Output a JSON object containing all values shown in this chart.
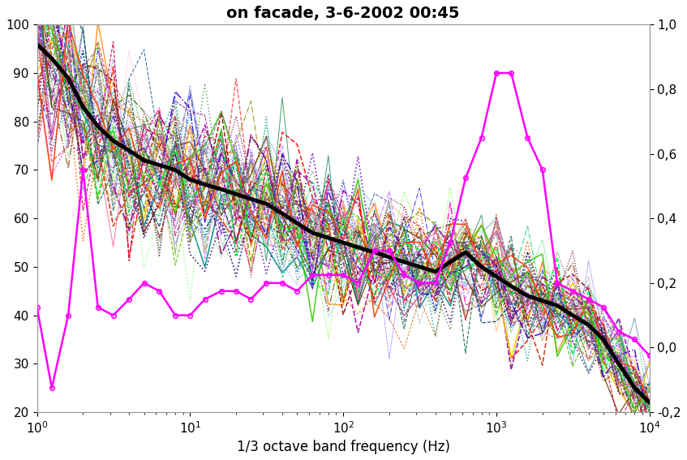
{
  "title": "on facade, 3-6-2002 00:45",
  "xlabel": "1/3 octave band frequency (Hz)",
  "xlim": [
    1,
    10000
  ],
  "ylim_left": [
    20,
    100
  ],
  "ylim_right": [
    -0.2,
    1.0
  ],
  "freq_bands": [
    1.0,
    1.25,
    1.6,
    2.0,
    2.5,
    3.15,
    4.0,
    5.0,
    6.3,
    8.0,
    10.0,
    12.5,
    16.0,
    20.0,
    25.0,
    31.5,
    40.0,
    50.0,
    63.0,
    80.0,
    100.0,
    125.0,
    160.0,
    200.0,
    250.0,
    315.0,
    400.0,
    500.0,
    630.0,
    800.0,
    1000.0,
    1250.0,
    1600.0,
    2000.0,
    2500.0,
    3150.0,
    4000.0,
    5000.0,
    6300.0,
    8000.0,
    10000.0
  ],
  "mean_spectrum": [
    96,
    93,
    89,
    83,
    79,
    76,
    74,
    72,
    71,
    70,
    68,
    67,
    66,
    65,
    64,
    63,
    61,
    59,
    57,
    56,
    55,
    54,
    53,
    52,
    51,
    50,
    49,
    51,
    53,
    50,
    48,
    46,
    44,
    43,
    42,
    40,
    38,
    35,
    30,
    25,
    22
  ],
  "magenta_right_axis": [
    0.125,
    -0.125,
    0.1,
    0.55,
    0.125,
    0.1,
    0.15,
    0.2,
    0.175,
    0.1,
    0.1,
    0.15,
    0.175,
    0.175,
    0.15,
    0.2,
    0.2,
    0.175,
    0.225,
    0.225,
    0.225,
    0.2,
    0.3,
    0.3,
    0.225,
    0.2,
    0.2,
    0.325,
    0.525,
    0.65,
    0.85,
    0.85,
    0.65,
    0.55,
    0.2,
    0.175,
    0.15,
    0.125,
    0.05,
    0.025,
    -0.025
  ],
  "magenta_color": "#FF00FF",
  "mean_color": "#000000",
  "mean_linewidth": 3.5,
  "background_color": "#ffffff",
  "num_background_lines": 60,
  "seed": 123,
  "noise_std_low": 10,
  "noise_std_high": 4
}
